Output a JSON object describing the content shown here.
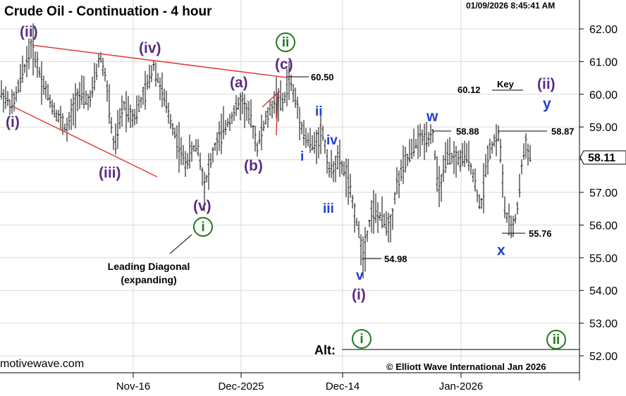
{
  "chart_data": {
    "type": "candlestick",
    "title": "Crude Oil - Continuation - 4 hour",
    "timestamp": "01/09/2026 8:45:41 AM",
    "ylim": [
      51.8,
      62.6
    ],
    "y_ticks": [
      "52.00",
      "53.00",
      "54.00",
      "55.00",
      "56.00",
      "57.00",
      "58.00",
      "59.00",
      "60.00",
      "61.00",
      "62.00"
    ],
    "x_ticks": [
      "Nov-16",
      "Dec-2025",
      "Dec-14",
      "Jan-2026"
    ],
    "last_price": "58.11",
    "price_path": [
      [
        0,
        60.1
      ],
      [
        18,
        59.6
      ],
      [
        30,
        60.5
      ],
      [
        45,
        61.5
      ],
      [
        60,
        60.4
      ],
      [
        75,
        59.6
      ],
      [
        95,
        58.9
      ],
      [
        110,
        60.0
      ],
      [
        128,
        59.8
      ],
      [
        142,
        61.2
      ],
      [
        150,
        60.5
      ],
      [
        162,
        58.3
      ],
      [
        175,
        59.7
      ],
      [
        190,
        59.3
      ],
      [
        205,
        60.0
      ],
      [
        218,
        60.9
      ],
      [
        232,
        59.9
      ],
      [
        245,
        59.0
      ],
      [
        262,
        57.9
      ],
      [
        280,
        58.5
      ],
      [
        290,
        57.2
      ],
      [
        305,
        58.4
      ],
      [
        322,
        59.1
      ],
      [
        342,
        59.8
      ],
      [
        355,
        59.3
      ],
      [
        365,
        58.4
      ],
      [
        375,
        59.1
      ],
      [
        392,
        59.9
      ],
      [
        402,
        59.7
      ],
      [
        410,
        60.5
      ],
      [
        422,
        59.6
      ],
      [
        432,
        58.7
      ],
      [
        445,
        58.4
      ],
      [
        457,
        58.9
      ],
      [
        468,
        57.6
      ],
      [
        480,
        58.0
      ],
      [
        492,
        57.5
      ],
      [
        505,
        56.2
      ],
      [
        515,
        55.1
      ],
      [
        528,
        56.5
      ],
      [
        540,
        56.2
      ],
      [
        555,
        56.0
      ],
      [
        562,
        57.2
      ],
      [
        575,
        57.9
      ],
      [
        590,
        58.5
      ],
      [
        605,
        58.7
      ],
      [
        614,
        58.8
      ],
      [
        622,
        57.0
      ],
      [
        635,
        58.1
      ],
      [
        650,
        58.0
      ],
      [
        665,
        58.1
      ],
      [
        682,
        56.5
      ],
      [
        692,
        58.2
      ],
      [
        702,
        58.6
      ],
      [
        708,
        58.8
      ],
      [
        716,
        56.5
      ],
      [
        724,
        55.8
      ],
      [
        733,
        56.3
      ],
      [
        740,
        57.8
      ],
      [
        746,
        58.5
      ],
      [
        752,
        58.1
      ]
    ],
    "levels": [
      {
        "label": "60.50",
        "value": 60.5
      },
      {
        "label": "58.88",
        "value": 58.88
      },
      {
        "label": "58.87",
        "value": 58.87
      },
      {
        "label": "54.98",
        "value": 54.98
      },
      {
        "label": "55.76",
        "value": 55.76
      },
      {
        "label": "60.12",
        "value": 60.12
      },
      {
        "label": "Alt:",
        "value": 52.3
      }
    ],
    "key_label": "Key",
    "wave_labels": {
      "i_paren_left": "(i)",
      "ii_paren_left": "(ii)",
      "iii_paren": "(iii)",
      "iv_paren": "(iv)",
      "v_paren": "(v)",
      "a_paren": "(a)",
      "b_paren": "(b)",
      "c_paren": "(c)",
      "ii_green": "ii",
      "i_green": "i",
      "blue_i": "i",
      "blue_ii": "ii",
      "blue_iii": "iii",
      "blue_iv": "iv",
      "blue_v": "v",
      "paren_i_bottom": "(i)",
      "w": "w",
      "x": "x",
      "y": "y",
      "ii_paren_right": "(ii)",
      "alt_i": "i",
      "alt_ii": "ii"
    },
    "annotation": [
      "Leading Diagonal",
      "(expanding)"
    ],
    "credit": "© Elliott Wave International Jan 2026",
    "watermark": "motivewave.com",
    "colors": {
      "purple": "#5b2c83",
      "blue": "#1f3fd6",
      "green": "#1f7a1f",
      "trendline": "#e23a3a",
      "candle": "#000000"
    }
  }
}
